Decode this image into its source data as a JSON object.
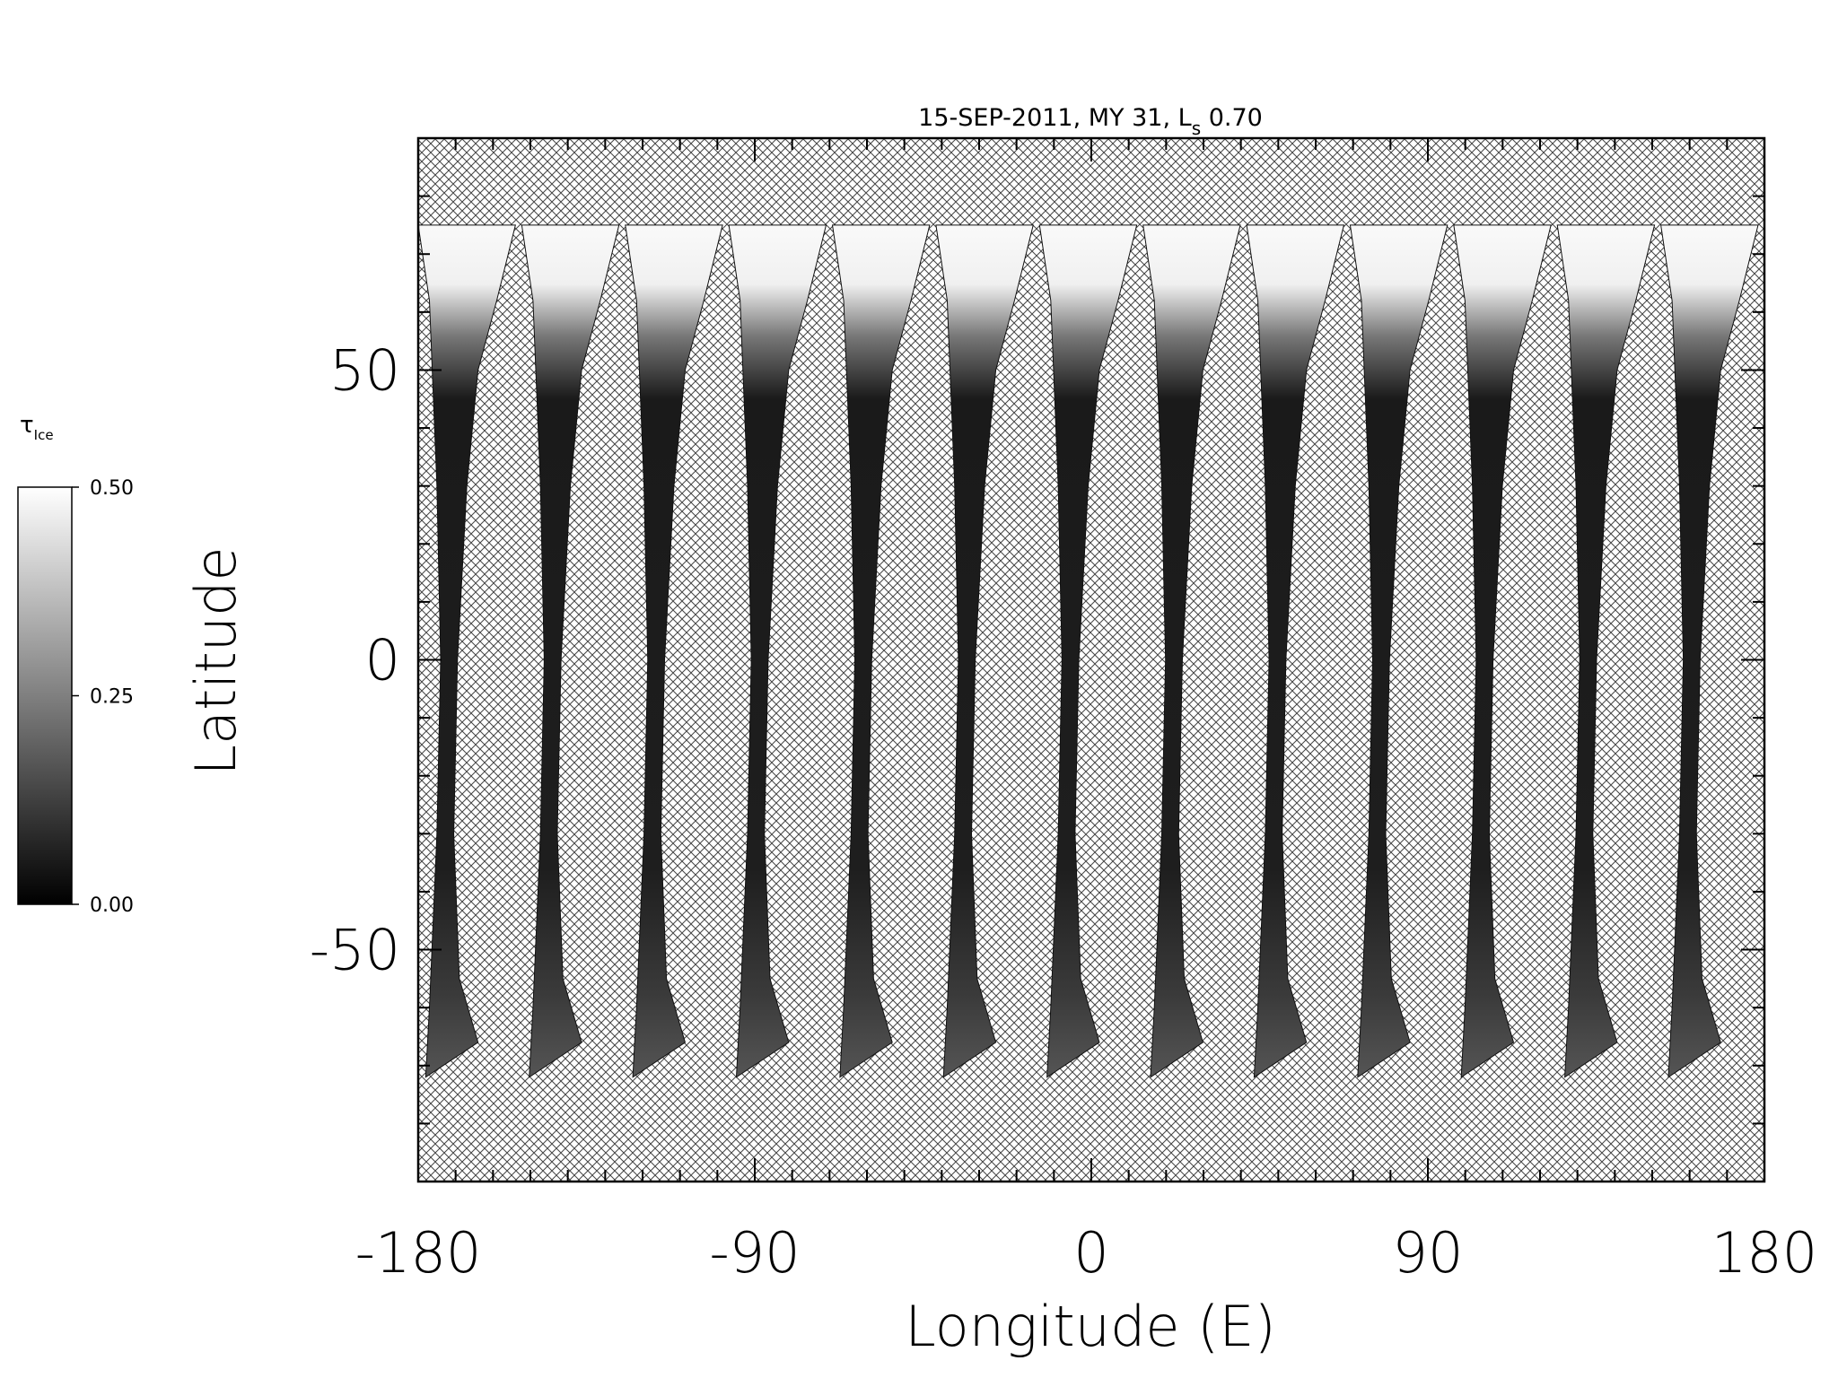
{
  "chart_data": {
    "type": "map",
    "title": "15-SEP-2011, MY 31,  L",
    "title_subscript": "s",
    "title_suffix": " 0.70",
    "xlabel": "Longitude (E)",
    "ylabel": "Latitude",
    "xlim": [
      -180,
      180
    ],
    "ylim": [
      -90,
      90
    ],
    "xticks": [
      -180,
      -90,
      0,
      90,
      180
    ],
    "yticks": [
      -50,
      0,
      50
    ],
    "xminorticks": [
      -170,
      -160,
      -150,
      -140,
      -130,
      -120,
      -110,
      -100,
      -80,
      -70,
      -60,
      -50,
      -40,
      -30,
      -20,
      -10,
      10,
      20,
      30,
      40,
      50,
      60,
      70,
      80,
      100,
      110,
      120,
      130,
      140,
      150,
      160,
      170
    ],
    "yminorticks": [
      -80,
      -70,
      -60,
      -40,
      -30,
      -20,
      -10,
      10,
      20,
      30,
      40,
      60,
      70,
      80
    ],
    "colorbar": {
      "label": "τ",
      "label_subscript": "Ice",
      "lim": [
        0,
        0.5
      ],
      "ticks": [
        {
          "value": 0,
          "label": "0.00"
        },
        {
          "value": 0.25,
          "label": "0.25"
        },
        {
          "value": 0.5,
          "label": "0.50"
        }
      ],
      "colors": [
        "#000000",
        "#ffffff"
      ]
    }
  }
}
